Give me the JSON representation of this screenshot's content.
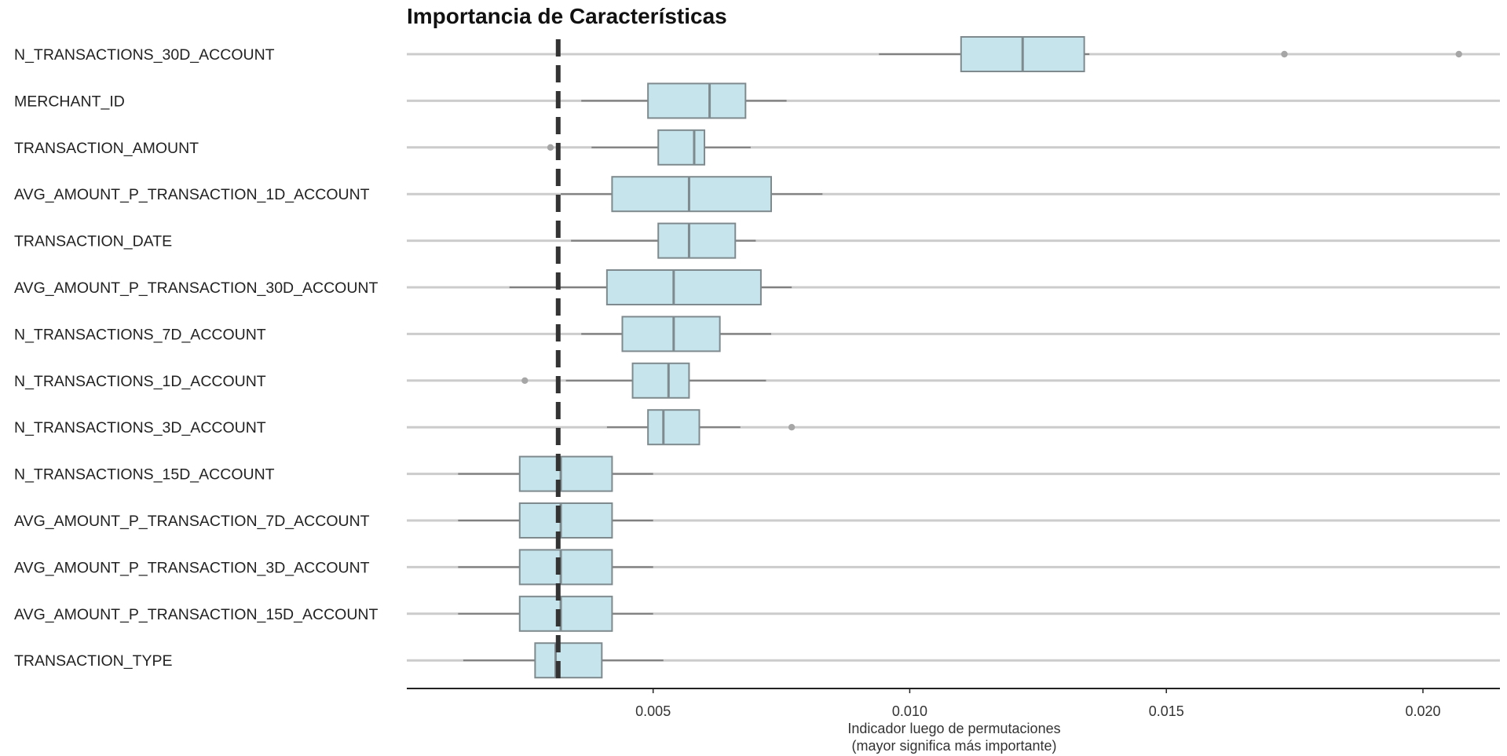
{
  "chart_data": {
    "type": "box",
    "title": "Importancia de Características",
    "xlabel": "Indicador luego de permutaciones",
    "xlabel_sub": "(mayor significa más importante)",
    "ylabel": "",
    "xlim": [
      0.0002,
      0.0215
    ],
    "xticks": [
      {
        "value": 0.005,
        "label": "0.005"
      },
      {
        "value": 0.01,
        "label": "0.010"
      },
      {
        "value": 0.015,
        "label": "0.015"
      },
      {
        "value": 0.02,
        "label": "0.020"
      }
    ],
    "reference_line": {
      "value": 0.00315,
      "style": "dashed"
    },
    "box_color": "#c5e4ec",
    "box_edge_color": "#7f8a8e",
    "grid_line_color": "#cccccc",
    "categories": [
      "N_TRANSACTIONS_30D_ACCOUNT",
      "MERCHANT_ID",
      "TRANSACTION_AMOUNT",
      "AVG_AMOUNT_P_TRANSACTION_1D_ACCOUNT",
      "TRANSACTION_DATE",
      "AVG_AMOUNT_P_TRANSACTION_30D_ACCOUNT",
      "N_TRANSACTIONS_7D_ACCOUNT",
      "N_TRANSACTIONS_1D_ACCOUNT",
      "N_TRANSACTIONS_3D_ACCOUNT",
      "N_TRANSACTIONS_15D_ACCOUNT",
      "AVG_AMOUNT_P_TRANSACTION_7D_ACCOUNT",
      "AVG_AMOUNT_P_TRANSACTION_3D_ACCOUNT",
      "AVG_AMOUNT_P_TRANSACTION_15D_ACCOUNT",
      "TRANSACTION_TYPE"
    ],
    "boxes": [
      {
        "whisker_low": 0.0094,
        "q1": 0.011,
        "median": 0.0122,
        "q3": 0.0134,
        "whisker_high": 0.0135,
        "outliers": [
          0.0173,
          0.0207
        ]
      },
      {
        "whisker_low": 0.0036,
        "q1": 0.0049,
        "median": 0.0061,
        "q3": 0.0068,
        "whisker_high": 0.0076,
        "outliers": []
      },
      {
        "whisker_low": 0.0038,
        "q1": 0.0051,
        "median": 0.0058,
        "q3": 0.006,
        "whisker_high": 0.0069,
        "outliers": [
          0.003
        ]
      },
      {
        "whisker_low": 0.0032,
        "q1": 0.0042,
        "median": 0.0057,
        "q3": 0.0073,
        "whisker_high": 0.0083,
        "outliers": []
      },
      {
        "whisker_low": 0.0034,
        "q1": 0.0051,
        "median": 0.0057,
        "q3": 0.0066,
        "whisker_high": 0.007,
        "outliers": []
      },
      {
        "whisker_low": 0.0022,
        "q1": 0.0041,
        "median": 0.0054,
        "q3": 0.0071,
        "whisker_high": 0.0077,
        "outliers": []
      },
      {
        "whisker_low": 0.0036,
        "q1": 0.0044,
        "median": 0.0054,
        "q3": 0.0063,
        "whisker_high": 0.0073,
        "outliers": []
      },
      {
        "whisker_low": 0.0033,
        "q1": 0.0046,
        "median": 0.0053,
        "q3": 0.0057,
        "whisker_high": 0.0072,
        "outliers": [
          0.0025
        ]
      },
      {
        "whisker_low": 0.0041,
        "q1": 0.0049,
        "median": 0.0052,
        "q3": 0.0059,
        "whisker_high": 0.0067,
        "outliers": [
          0.0077
        ]
      },
      {
        "whisker_low": 0.0012,
        "q1": 0.0024,
        "median": 0.0032,
        "q3": 0.0042,
        "whisker_high": 0.005,
        "outliers": []
      },
      {
        "whisker_low": 0.0012,
        "q1": 0.0024,
        "median": 0.0032,
        "q3": 0.0042,
        "whisker_high": 0.005,
        "outliers": []
      },
      {
        "whisker_low": 0.0012,
        "q1": 0.0024,
        "median": 0.0032,
        "q3": 0.0042,
        "whisker_high": 0.005,
        "outliers": []
      },
      {
        "whisker_low": 0.0012,
        "q1": 0.0024,
        "median": 0.0032,
        "q3": 0.0042,
        "whisker_high": 0.005,
        "outliers": []
      },
      {
        "whisker_low": 0.0013,
        "q1": 0.0027,
        "median": 0.0031,
        "q3": 0.004,
        "whisker_high": 0.0052,
        "outliers": []
      }
    ],
    "grid": false,
    "legend": "none"
  }
}
